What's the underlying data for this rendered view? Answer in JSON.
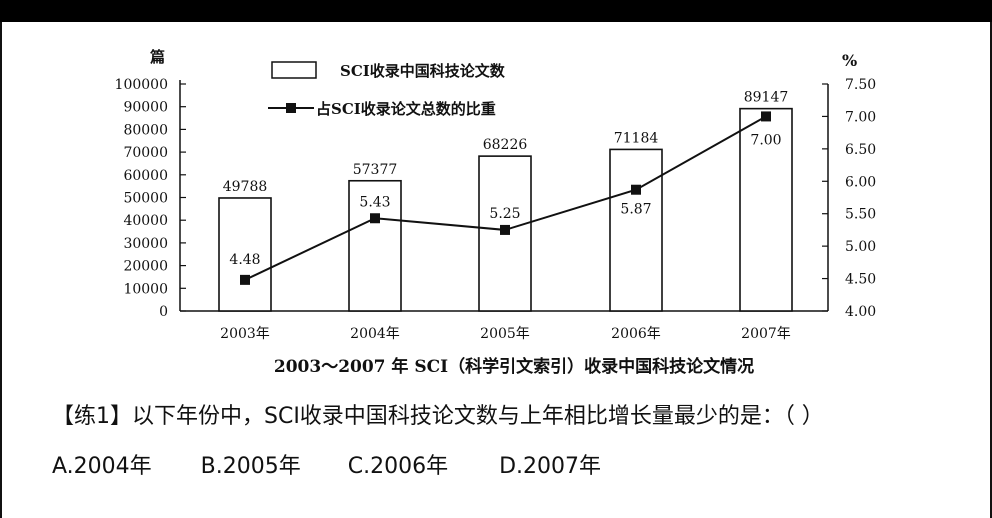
{
  "chart_data": {
    "type": "bar+line",
    "title": "2003～2007 年 SCI（科学引文索引）收录中国科技论文情况",
    "categories": [
      "2003年",
      "2004年",
      "2005年",
      "2006年",
      "2007年"
    ],
    "series": [
      {
        "name": "SCI收录中国科技论文数",
        "type": "bar",
        "axis": "left",
        "values": [
          49788,
          57377,
          68226,
          71184,
          89147
        ],
        "labels": [
          "49788",
          "57377",
          "68226",
          "71184",
          "89147"
        ]
      },
      {
        "name": "占SCI收录论文总数的比重",
        "type": "line",
        "axis": "right",
        "values": [
          4.48,
          5.43,
          5.25,
          5.87,
          7.0
        ],
        "labels": [
          "4.48",
          "5.43",
          "5.25",
          "5.87",
          "7.00"
        ]
      }
    ],
    "y_left": {
      "unit": "篇",
      "ylim": [
        0,
        100000
      ],
      "ticks": [
        "100000",
        "90000",
        "80000",
        "70000",
        "60000",
        "50000",
        "40000",
        "30000",
        "20000",
        "10000",
        "0"
      ]
    },
    "y_right": {
      "unit": "%",
      "ylim": [
        4.0,
        7.5
      ],
      "ticks": [
        "7.50",
        "7.00",
        "6.50",
        "6.00",
        "5.50",
        "5.00",
        "4.50",
        "4.00"
      ]
    },
    "grid": false,
    "legend_position": "top-center"
  },
  "question": {
    "text": "【练1】以下年份中，SCI收录中国科技论文数与上年相比增长量最少的是：（    ）",
    "options": [
      "A.2004年",
      "B.2005年",
      "C.2006年",
      "D.2007年"
    ]
  }
}
